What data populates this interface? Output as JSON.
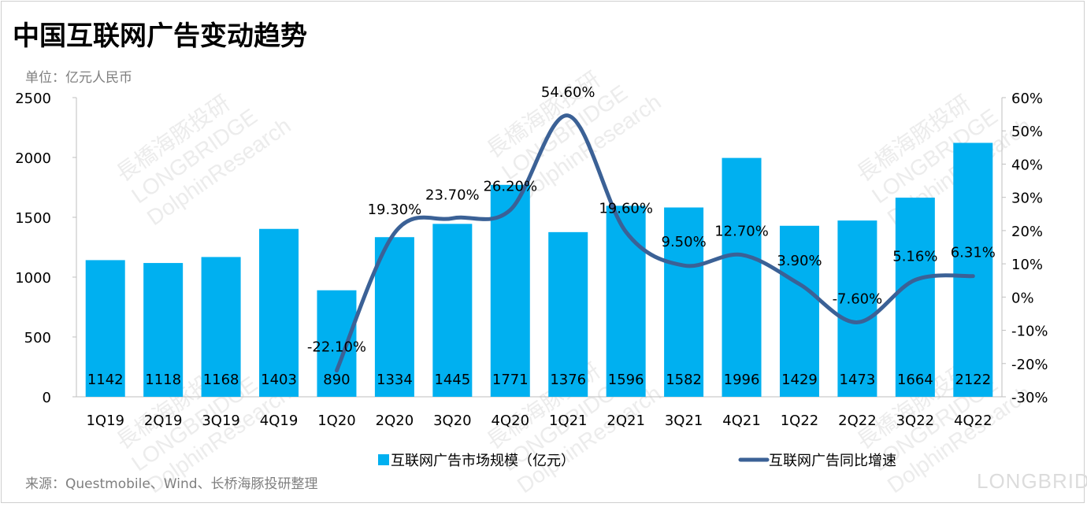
{
  "title": "中国互联网广告变动趋势",
  "unit": "单位：亿元人民币",
  "source": "来源：Questmobile、Wind、长桥海豚投研整理",
  "logo": "LONGBRIDGE",
  "watermark": [
    "長橋海豚投研",
    "LONGBRIDGE",
    "DolphinResearch"
  ],
  "colors": {
    "bar": "#00B0F0",
    "line": "#3B6196"
  },
  "chart_data": {
    "type": "bar+line",
    "categories": [
      "1Q19",
      "2Q19",
      "3Q19",
      "4Q19",
      "1Q20",
      "2Q20",
      "3Q20",
      "4Q20",
      "1Q21",
      "2Q21",
      "3Q21",
      "4Q21",
      "1Q22",
      "2Q22",
      "3Q22",
      "4Q22"
    ],
    "series": [
      {
        "name": "互联网广告市场规模（亿元）",
        "type": "bar",
        "axis": "left",
        "values": [
          1142,
          1118,
          1168,
          1403,
          890,
          1334,
          1445,
          1771,
          1376,
          1596,
          1582,
          1996,
          1429,
          1473,
          1664,
          2122
        ],
        "labels": [
          "1142",
          "1118",
          "1168",
          "1403",
          "890",
          "1334",
          "1445",
          "1771",
          "1376",
          "1596",
          "1582",
          "1996",
          "1429",
          "1473",
          "1664",
          "2122"
        ]
      },
      {
        "name": "互联网广告同比增速",
        "type": "line",
        "axis": "right",
        "smooth": true,
        "values": [
          null,
          null,
          null,
          null,
          -22.1,
          19.3,
          23.7,
          26.2,
          54.6,
          19.6,
          9.5,
          12.7,
          3.9,
          -7.6,
          5.16,
          6.31
        ],
        "labels": [
          null,
          null,
          null,
          null,
          "-22.10%",
          "19.30%",
          "23.70%",
          "26.20%",
          "54.60%",
          "19.60%",
          "9.50%",
          "12.70%",
          "3.90%",
          "-7.60%",
          "5.16%",
          "6.31%"
        ]
      }
    ],
    "y_left": {
      "range": [
        0,
        2500
      ],
      "ticks": [
        "0",
        "500",
        "1000",
        "1500",
        "2000",
        "2500"
      ]
    },
    "y_right": {
      "range": [
        -30,
        60
      ],
      "ticks": [
        "-30%",
        "-20%",
        "-10%",
        "0%",
        "10%",
        "20%",
        "30%",
        "40%",
        "50%",
        "60%"
      ]
    },
    "grid": false,
    "legend_position": "bottom"
  }
}
